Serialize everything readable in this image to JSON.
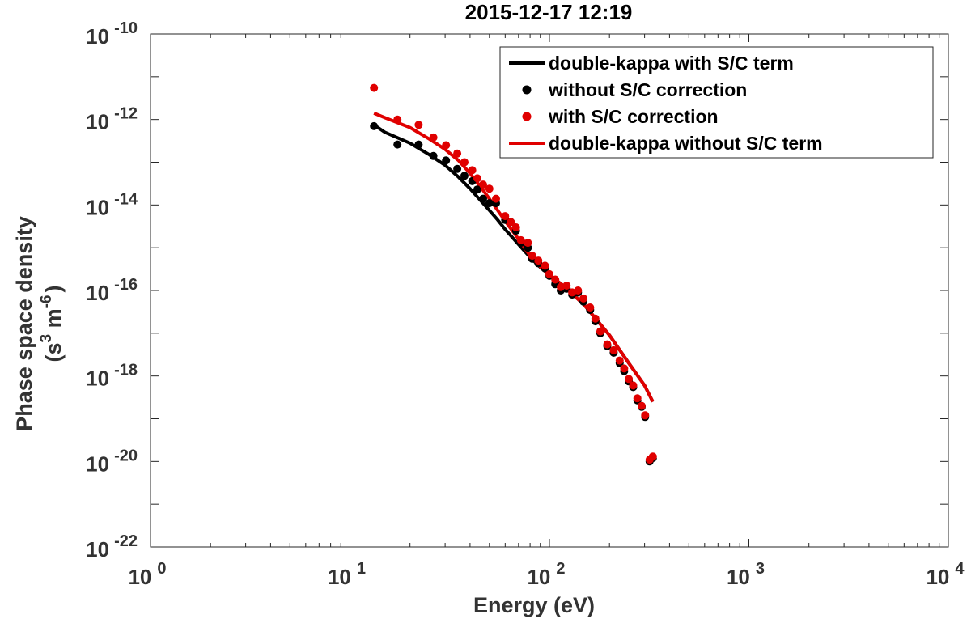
{
  "chart_data": {
    "type": "scatter",
    "title": "2015-12-17 12:19",
    "xlabel": "Energy (eV)",
    "ylabel_line1": "Phase space density",
    "ylabel_line2": {
      "open": "(s",
      "exp1": "3",
      "mid": " m",
      "exp2": "-6",
      "close": ")"
    },
    "xscale": "log",
    "yscale": "log",
    "xlim": [
      1,
      10000
    ],
    "ylim": [
      1e-22,
      1e-10
    ],
    "grid": false,
    "legend_position": "top-right",
    "x_ticks": [
      {
        "base": "10",
        "exp": "0"
      },
      {
        "base": "10",
        "exp": "1"
      },
      {
        "base": "10",
        "exp": "2"
      },
      {
        "base": "10",
        "exp": "3"
      },
      {
        "base": "10",
        "exp": "4"
      }
    ],
    "y_ticks": [
      {
        "base": "10",
        "exp": "-22"
      },
      {
        "base": "10",
        "exp": "-20"
      },
      {
        "base": "10",
        "exp": "-18"
      },
      {
        "base": "10",
        "exp": "-16"
      },
      {
        "base": "10",
        "exp": "-14"
      },
      {
        "base": "10",
        "exp": "-12"
      },
      {
        "base": "10",
        "exp": "-10"
      }
    ],
    "series": [
      {
        "name": "double-kappa with S/C term",
        "kind": "line",
        "color": "#000000",
        "points": [
          [
            13.2,
            7.5e-13
          ],
          [
            15,
            5e-13
          ],
          [
            20,
            2.8e-13
          ],
          [
            25,
            1.5e-13
          ],
          [
            30,
            8.5e-14
          ],
          [
            35,
            4.5e-14
          ],
          [
            40,
            2.4e-14
          ],
          [
            45,
            1.3e-14
          ],
          [
            50,
            7.5e-15
          ],
          [
            55,
            4.5e-15
          ],
          [
            60,
            2.7e-15
          ],
          [
            70,
            1.2e-15
          ],
          [
            80,
            6e-16
          ],
          [
            90,
            3.5e-16
          ],
          [
            100,
            2.3e-16
          ],
          [
            120,
            1.2e-16
          ],
          [
            150,
            4.5e-17
          ],
          [
            200,
            9e-18
          ],
          [
            250,
            2e-18
          ],
          [
            300,
            6e-19
          ],
          [
            330,
            2.5e-19
          ]
        ]
      },
      {
        "name": "without S/C correction",
        "kind": "markers",
        "color": "#000000",
        "points": [
          [
            13.2,
            7e-13
          ],
          [
            17.3,
            2.6e-13
          ],
          [
            22.1,
            2.6e-13
          ],
          [
            26.2,
            1.4e-13
          ],
          [
            30.3,
            1.1e-13
          ],
          [
            34.5,
            7e-14
          ],
          [
            37.5,
            4.8e-14
          ],
          [
            41,
            3.6e-14
          ],
          [
            43.5,
            2.3e-14
          ],
          [
            46.5,
            1.4e-14
          ],
          [
            50,
            1.1e-14
          ],
          [
            54,
            1.1e-14
          ],
          [
            60,
            4.5e-15
          ],
          [
            64,
            4e-15
          ],
          [
            68,
            2.5e-15
          ],
          [
            72,
            1.3e-15
          ],
          [
            78,
            1e-15
          ],
          [
            82,
            5.5e-16
          ],
          [
            88,
            4.3e-16
          ],
          [
            95,
            3.3e-16
          ],
          [
            100,
            2.2e-16
          ],
          [
            107,
            1.4e-16
          ],
          [
            114,
            1e-16
          ],
          [
            122,
            1.1e-16
          ],
          [
            130,
            8e-17
          ],
          [
            139,
            9e-17
          ],
          [
            148,
            5.5e-17
          ],
          [
            160,
            3.5e-17
          ],
          [
            170,
            1.9e-17
          ],
          [
            180,
            1e-17
          ],
          [
            195,
            5e-18
          ],
          [
            210,
            3.5e-18
          ],
          [
            225,
            2e-18
          ],
          [
            237,
            1.3e-18
          ],
          [
            250,
            7.5e-19
          ],
          [
            263,
            5.5e-19
          ],
          [
            276,
            2.7e-19
          ],
          [
            290,
            1.9e-19
          ],
          [
            302,
            1.1e-19
          ],
          [
            318,
            1e-20
          ],
          [
            330,
            1.2e-20
          ]
        ]
      },
      {
        "name": "with S/C correction",
        "kind": "markers",
        "color": "#e00000",
        "points": [
          [
            13.2,
            5.5e-12
          ],
          [
            17.3,
            1e-12
          ],
          [
            22.1,
            7.5e-13
          ],
          [
            26.2,
            3.8e-13
          ],
          [
            30.3,
            2.5e-13
          ],
          [
            34.5,
            1.6e-13
          ],
          [
            37.5,
            1e-13
          ],
          [
            41,
            6.5e-14
          ],
          [
            43.5,
            4.2e-14
          ],
          [
            46.5,
            3e-14
          ],
          [
            50,
            2.4e-14
          ],
          [
            54,
            1.4e-14
          ],
          [
            60,
            5.5e-15
          ],
          [
            64,
            4e-15
          ],
          [
            68,
            3e-15
          ],
          [
            72,
            1.5e-15
          ],
          [
            78,
            1.3e-15
          ],
          [
            82,
            6.5e-16
          ],
          [
            88,
            5e-16
          ],
          [
            95,
            3.8e-16
          ],
          [
            100,
            2.4e-16
          ],
          [
            107,
            1.8e-16
          ],
          [
            114,
            1.2e-16
          ],
          [
            122,
            1.3e-16
          ],
          [
            130,
            9e-17
          ],
          [
            139,
            1e-16
          ],
          [
            148,
            6.5e-17
          ],
          [
            160,
            4e-17
          ],
          [
            170,
            2.2e-17
          ],
          [
            180,
            1.1e-17
          ],
          [
            195,
            5.5e-18
          ],
          [
            210,
            4e-18
          ],
          [
            225,
            2.3e-18
          ],
          [
            237,
            1.5e-18
          ],
          [
            250,
            8.5e-19
          ],
          [
            263,
            6e-19
          ],
          [
            276,
            3e-19
          ],
          [
            290,
            2e-19
          ],
          [
            302,
            1.2e-19
          ],
          [
            318,
            1.1e-20
          ],
          [
            330,
            1.3e-20
          ]
        ]
      },
      {
        "name": "double-kappa without S/C term",
        "kind": "line",
        "color": "#e00000",
        "points": [
          [
            13.2,
            1.4e-12
          ],
          [
            15,
            1.1e-12
          ],
          [
            20,
            6.5e-13
          ],
          [
            25,
            3.5e-13
          ],
          [
            30,
            2e-13
          ],
          [
            35,
            1.1e-13
          ],
          [
            40,
            5.5e-14
          ],
          [
            45,
            2.7e-14
          ],
          [
            50,
            1.4e-14
          ],
          [
            55,
            7.5e-15
          ],
          [
            60,
            4.2e-15
          ],
          [
            70,
            1.6e-15
          ],
          [
            80,
            6.5e-16
          ],
          [
            90,
            3.6e-16
          ],
          [
            100,
            2.3e-16
          ],
          [
            120,
            1.2e-16
          ],
          [
            150,
            4.5e-17
          ],
          [
            200,
            9e-18
          ],
          [
            250,
            2e-18
          ],
          [
            300,
            6e-19
          ],
          [
            330,
            2.5e-19
          ]
        ]
      }
    ]
  }
}
